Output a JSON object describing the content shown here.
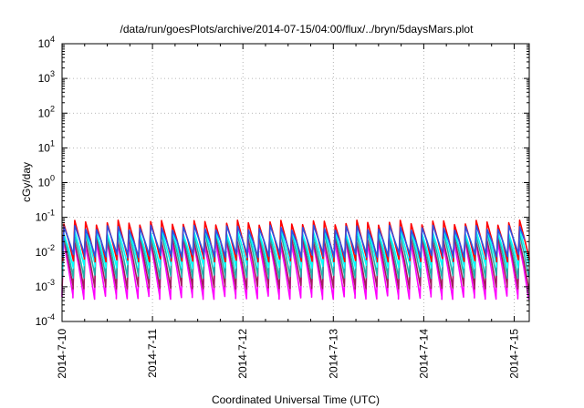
{
  "chart_data": {
    "type": "line",
    "title": "/data/run/goesPlots/archive/2014-07-15/04:00/flux/../bryn/5daysMars.plot",
    "xlabel": "Coordinated Universal Time (UTC)",
    "ylabel": "cGy/day",
    "x_range": [
      "2014-07-10T00:00",
      "2014-07-15T04:00"
    ],
    "x_ticks": [
      "2014-7-10",
      "2014-7-11",
      "2014-7-12",
      "2014-7-13",
      "2014-7-14",
      "2014-7-15"
    ],
    "y_scale": "log",
    "ylim": [
      0.0001,
      10000
    ],
    "y_ticks": [
      {
        "base": "10",
        "exp": "-4",
        "value": 0.0001
      },
      {
        "base": "10",
        "exp": "-3",
        "value": 0.001
      },
      {
        "base": "10",
        "exp": "-2",
        "value": 0.01
      },
      {
        "base": "10",
        "exp": "-1",
        "value": 0.1
      },
      {
        "base": "10",
        "exp": "0",
        "value": 1
      },
      {
        "base": "10",
        "exp": "1",
        "value": 10
      },
      {
        "base": "10",
        "exp": "2",
        "value": 100
      },
      {
        "base": "10",
        "exp": "3",
        "value": 1000
      },
      {
        "base": "10",
        "exp": "4",
        "value": 10000
      }
    ],
    "grid": true,
    "cycle_hours": 2.88,
    "series": [
      {
        "color": "#ff00ff",
        "peak": 0.02,
        "trough": 0.0005
      },
      {
        "color": "#a0205a",
        "peak": 0.025,
        "trough": 0.001
      },
      {
        "color": "#20b2aa",
        "peak": 0.035,
        "trough": 0.002
      },
      {
        "color": "#00ffff",
        "peak": 0.04,
        "trough": 0.004
      },
      {
        "color": "#ff0000",
        "peak": 0.07,
        "trough": 0.006
      },
      {
        "color": "#3050e0",
        "peak": 0.05,
        "trough": 0.008
      }
    ]
  }
}
